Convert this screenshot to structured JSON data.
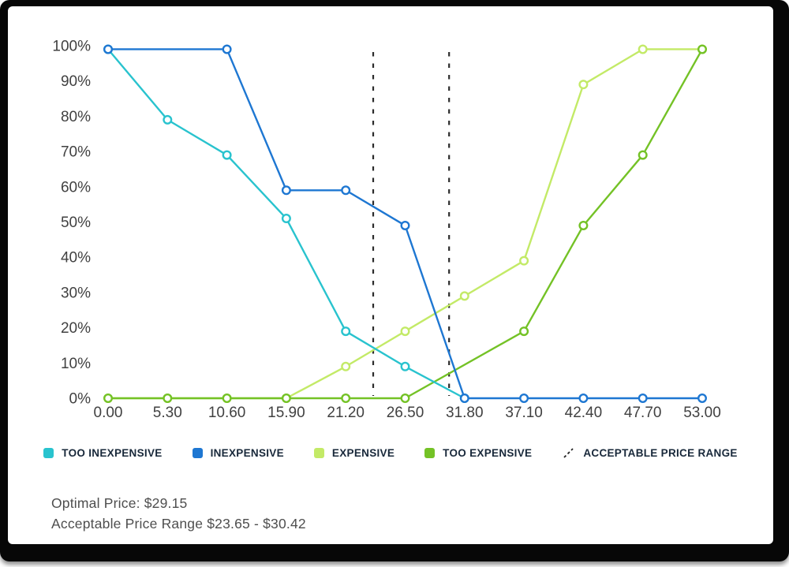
{
  "chart_data": {
    "type": "line",
    "title": "",
    "xlabel": "",
    "ylabel": "",
    "xlim": [
      0,
      53
    ],
    "ylim": [
      0,
      100
    ],
    "grid": false,
    "x_ticks": [
      {
        "label": "0.00",
        "value": 0
      },
      {
        "label": "5.30",
        "value": 5.3
      },
      {
        "label": "10.60",
        "value": 10.6
      },
      {
        "label": "15.90",
        "value": 15.9
      },
      {
        "label": "21.20",
        "value": 21.2
      },
      {
        "label": "26.50",
        "value": 26.5
      },
      {
        "label": "31.80",
        "value": 31.8
      },
      {
        "label": "37.10",
        "value": 37.1
      },
      {
        "label": "42.40",
        "value": 42.4
      },
      {
        "label": "47.70",
        "value": 47.7
      },
      {
        "label": "53.00",
        "value": 53
      }
    ],
    "y_ticks": [
      {
        "label": "100%",
        "value": 100
      },
      {
        "label": "90%",
        "value": 90
      },
      {
        "label": "80%",
        "value": 80
      },
      {
        "label": "70%",
        "value": 70
      },
      {
        "label": "60%",
        "value": 60
      },
      {
        "label": "50%",
        "value": 50
      },
      {
        "label": "40%",
        "value": 40
      },
      {
        "label": "30%",
        "value": 30
      },
      {
        "label": "20%",
        "value": 20
      },
      {
        "label": "10%",
        "value": 10
      },
      {
        "label": "0%",
        "value": 0
      }
    ],
    "series": [
      {
        "id": "expensive",
        "name": "EXPENSIVE",
        "color": "#c3ea67",
        "points": [
          [
            0,
            0
          ],
          [
            5.3,
            0
          ],
          [
            10.6,
            0
          ],
          [
            15.9,
            0
          ],
          [
            21.2,
            9
          ],
          [
            26.5,
            19
          ],
          [
            31.8,
            29
          ],
          [
            37.1,
            39
          ],
          [
            42.4,
            89
          ],
          [
            47.7,
            99
          ],
          [
            53,
            99
          ]
        ]
      },
      {
        "id": "too-expensive",
        "name": "TOO EXPENSIVE",
        "color": "#74c226",
        "points": [
          [
            0,
            0
          ],
          [
            5.3,
            0
          ],
          [
            10.6,
            0
          ],
          [
            15.9,
            0
          ],
          [
            21.2,
            0
          ],
          [
            26.5,
            0
          ],
          [
            37.1,
            19
          ],
          [
            42.4,
            49
          ],
          [
            47.7,
            69
          ],
          [
            53,
            99
          ]
        ]
      },
      {
        "id": "too-inexpensive",
        "name": "TOO INEXPENSIVE",
        "color": "#29c3ce",
        "points": [
          [
            0,
            99
          ],
          [
            5.3,
            79
          ],
          [
            10.6,
            69
          ],
          [
            15.9,
            51
          ],
          [
            21.2,
            19
          ],
          [
            26.5,
            9
          ],
          [
            31.8,
            0
          ]
        ]
      },
      {
        "id": "inexpensive",
        "name": "INEXPENSIVE",
        "color": "#1e77d2",
        "points": [
          [
            0,
            99
          ],
          [
            10.6,
            99
          ],
          [
            15.9,
            59
          ],
          [
            21.2,
            59
          ],
          [
            26.5,
            49
          ],
          [
            31.8,
            0
          ],
          [
            37.1,
            0
          ],
          [
            42.4,
            0
          ],
          [
            47.7,
            0
          ],
          [
            53,
            0
          ]
        ]
      }
    ],
    "reference_lines": {
      "label": "ACCEPTABLE PRICE RANGE",
      "style": "dashed",
      "color": "#2b2b2b",
      "x_values": [
        23.65,
        30.42
      ]
    },
    "legend_position": "bottom"
  },
  "legend": {
    "items": [
      {
        "label": "TOO INEXPENSIVE",
        "color": "#29c3ce",
        "type": "swatch"
      },
      {
        "label": "INEXPENSIVE",
        "color": "#1e77d2",
        "type": "swatch"
      },
      {
        "label": "EXPENSIVE",
        "color": "#c3ea67",
        "type": "swatch"
      },
      {
        "label": "TOO EXPENSIVE",
        "color": "#74c226",
        "type": "swatch"
      },
      {
        "label": "ACCEPTABLE PRICE RANGE",
        "color": "#222222",
        "type": "dashed-line"
      }
    ]
  },
  "footer": {
    "optimal_price": "Optimal Price: $29.15",
    "acceptable_range": "Acceptable Price Range $23.65 - $30.42"
  }
}
